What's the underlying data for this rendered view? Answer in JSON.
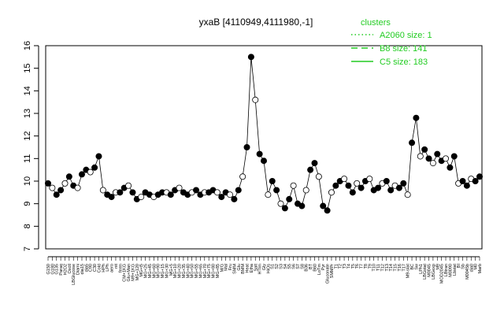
{
  "chart_data": {
    "type": "line",
    "title": "yxaB [4110949,4111980,-1]",
    "xlabel": "",
    "ylabel": "",
    "ylim": [
      7,
      16
    ],
    "yticks": [
      7,
      8,
      9,
      10,
      11,
      12,
      13,
      14,
      15,
      16
    ],
    "grid": false,
    "legend": {
      "title": "clusters",
      "placement": "top-right",
      "entries": [
        {
          "label": "A2060 size: 1",
          "style": "dotted"
        },
        {
          "label": "B8 size: 141",
          "style": "dashed"
        },
        {
          "label": "C5 size: 183",
          "style": "solid"
        }
      ]
    },
    "categories": [
      "G150",
      "G180",
      "G135",
      "Paraq",
      "H2O2",
      "Oxctl",
      "LBGlucose",
      "Diami",
      "dia15",
      "dia5",
      "C90",
      "C30",
      "Cold",
      "HPh",
      "LPh",
      "aero",
      "nit",
      "ferm",
      "CM+1KG",
      "Glu+Man",
      "M9+1KG",
      "MG+120",
      "MG+t5",
      "MG+25",
      "MG+45",
      "MG+60",
      "MG+90",
      "MG+15",
      "MG+30",
      "MG+5",
      "MG+10",
      "MG+20",
      "MG+35",
      "MG+40",
      "MG+50",
      "MG+55",
      "MG+65",
      "MG+70",
      "MG+75",
      "MG+80",
      "MG+85",
      "M/G",
      "Mal",
      "Fru",
      "SMM",
      "Glu",
      "BMM",
      "Heat",
      "Etha",
      "Salt",
      "HTIm",
      "Gly",
      "HiOs",
      "S1",
      "S2",
      "S3",
      "S4",
      "S5",
      "S6",
      "S7",
      "S8",
      "B36",
      "BT",
      "B60",
      "LoTm",
      "Pyr",
      "Gluconate",
      "SMMPr",
      "T1",
      "T2",
      "T3",
      "T4",
      "T5",
      "T6",
      "T7",
      "T8",
      "T9",
      "T10",
      "T11",
      "T12",
      "T13",
      "T14",
      "T15",
      "T16",
      "T17",
      "M9-stat",
      "BC",
      "Sw",
      "LPh1",
      "LBGstat",
      "M0045",
      "LBGexp",
      "M9",
      "MOD2045",
      "LBtran",
      "M0090",
      "Lbstat",
      "BI",
      "Sb",
      "M0045b",
      "dia0",
      "M0",
      "Marb"
    ],
    "series": [
      {
        "name": "",
        "values": [
          9.9,
          9.7,
          9.4,
          9.6,
          9.9,
          10.2,
          9.8,
          9.7,
          10.3,
          10.5,
          10.4,
          10.6,
          11.1,
          9.6,
          9.4,
          9.3,
          9.5,
          9.5,
          9.7,
          9.8,
          9.5,
          9.2,
          9.3,
          9.5,
          9.4,
          9.3,
          9.4,
          9.5,
          9.5,
          9.4,
          9.6,
          9.7,
          9.5,
          9.4,
          9.5,
          9.6,
          9.4,
          9.5,
          9.5,
          9.6,
          9.5,
          9.3,
          9.5,
          9.4,
          9.2,
          9.6,
          10.2,
          11.5,
          15.5,
          13.6,
          11.2,
          10.9,
          9.4,
          10.0,
          9.6,
          9.0,
          8.8,
          9.2,
          9.8,
          9.0,
          8.9,
          9.6,
          10.5,
          10.8,
          10.2,
          8.9,
          8.7,
          9.5,
          9.8,
          10.0,
          10.1,
          9.8,
          9.5,
          9.9,
          9.7,
          10.0,
          10.1,
          9.6,
          9.7,
          9.9,
          10.0,
          9.6,
          9.8,
          9.7,
          9.9,
          9.4,
          11.7,
          12.8,
          11.1,
          11.4,
          11.0,
          10.8,
          11.2,
          10.9,
          11.0,
          10.6,
          11.1,
          9.9,
          10.0,
          9.8,
          10.1,
          10.0,
          10.2
        ]
      }
    ]
  }
}
